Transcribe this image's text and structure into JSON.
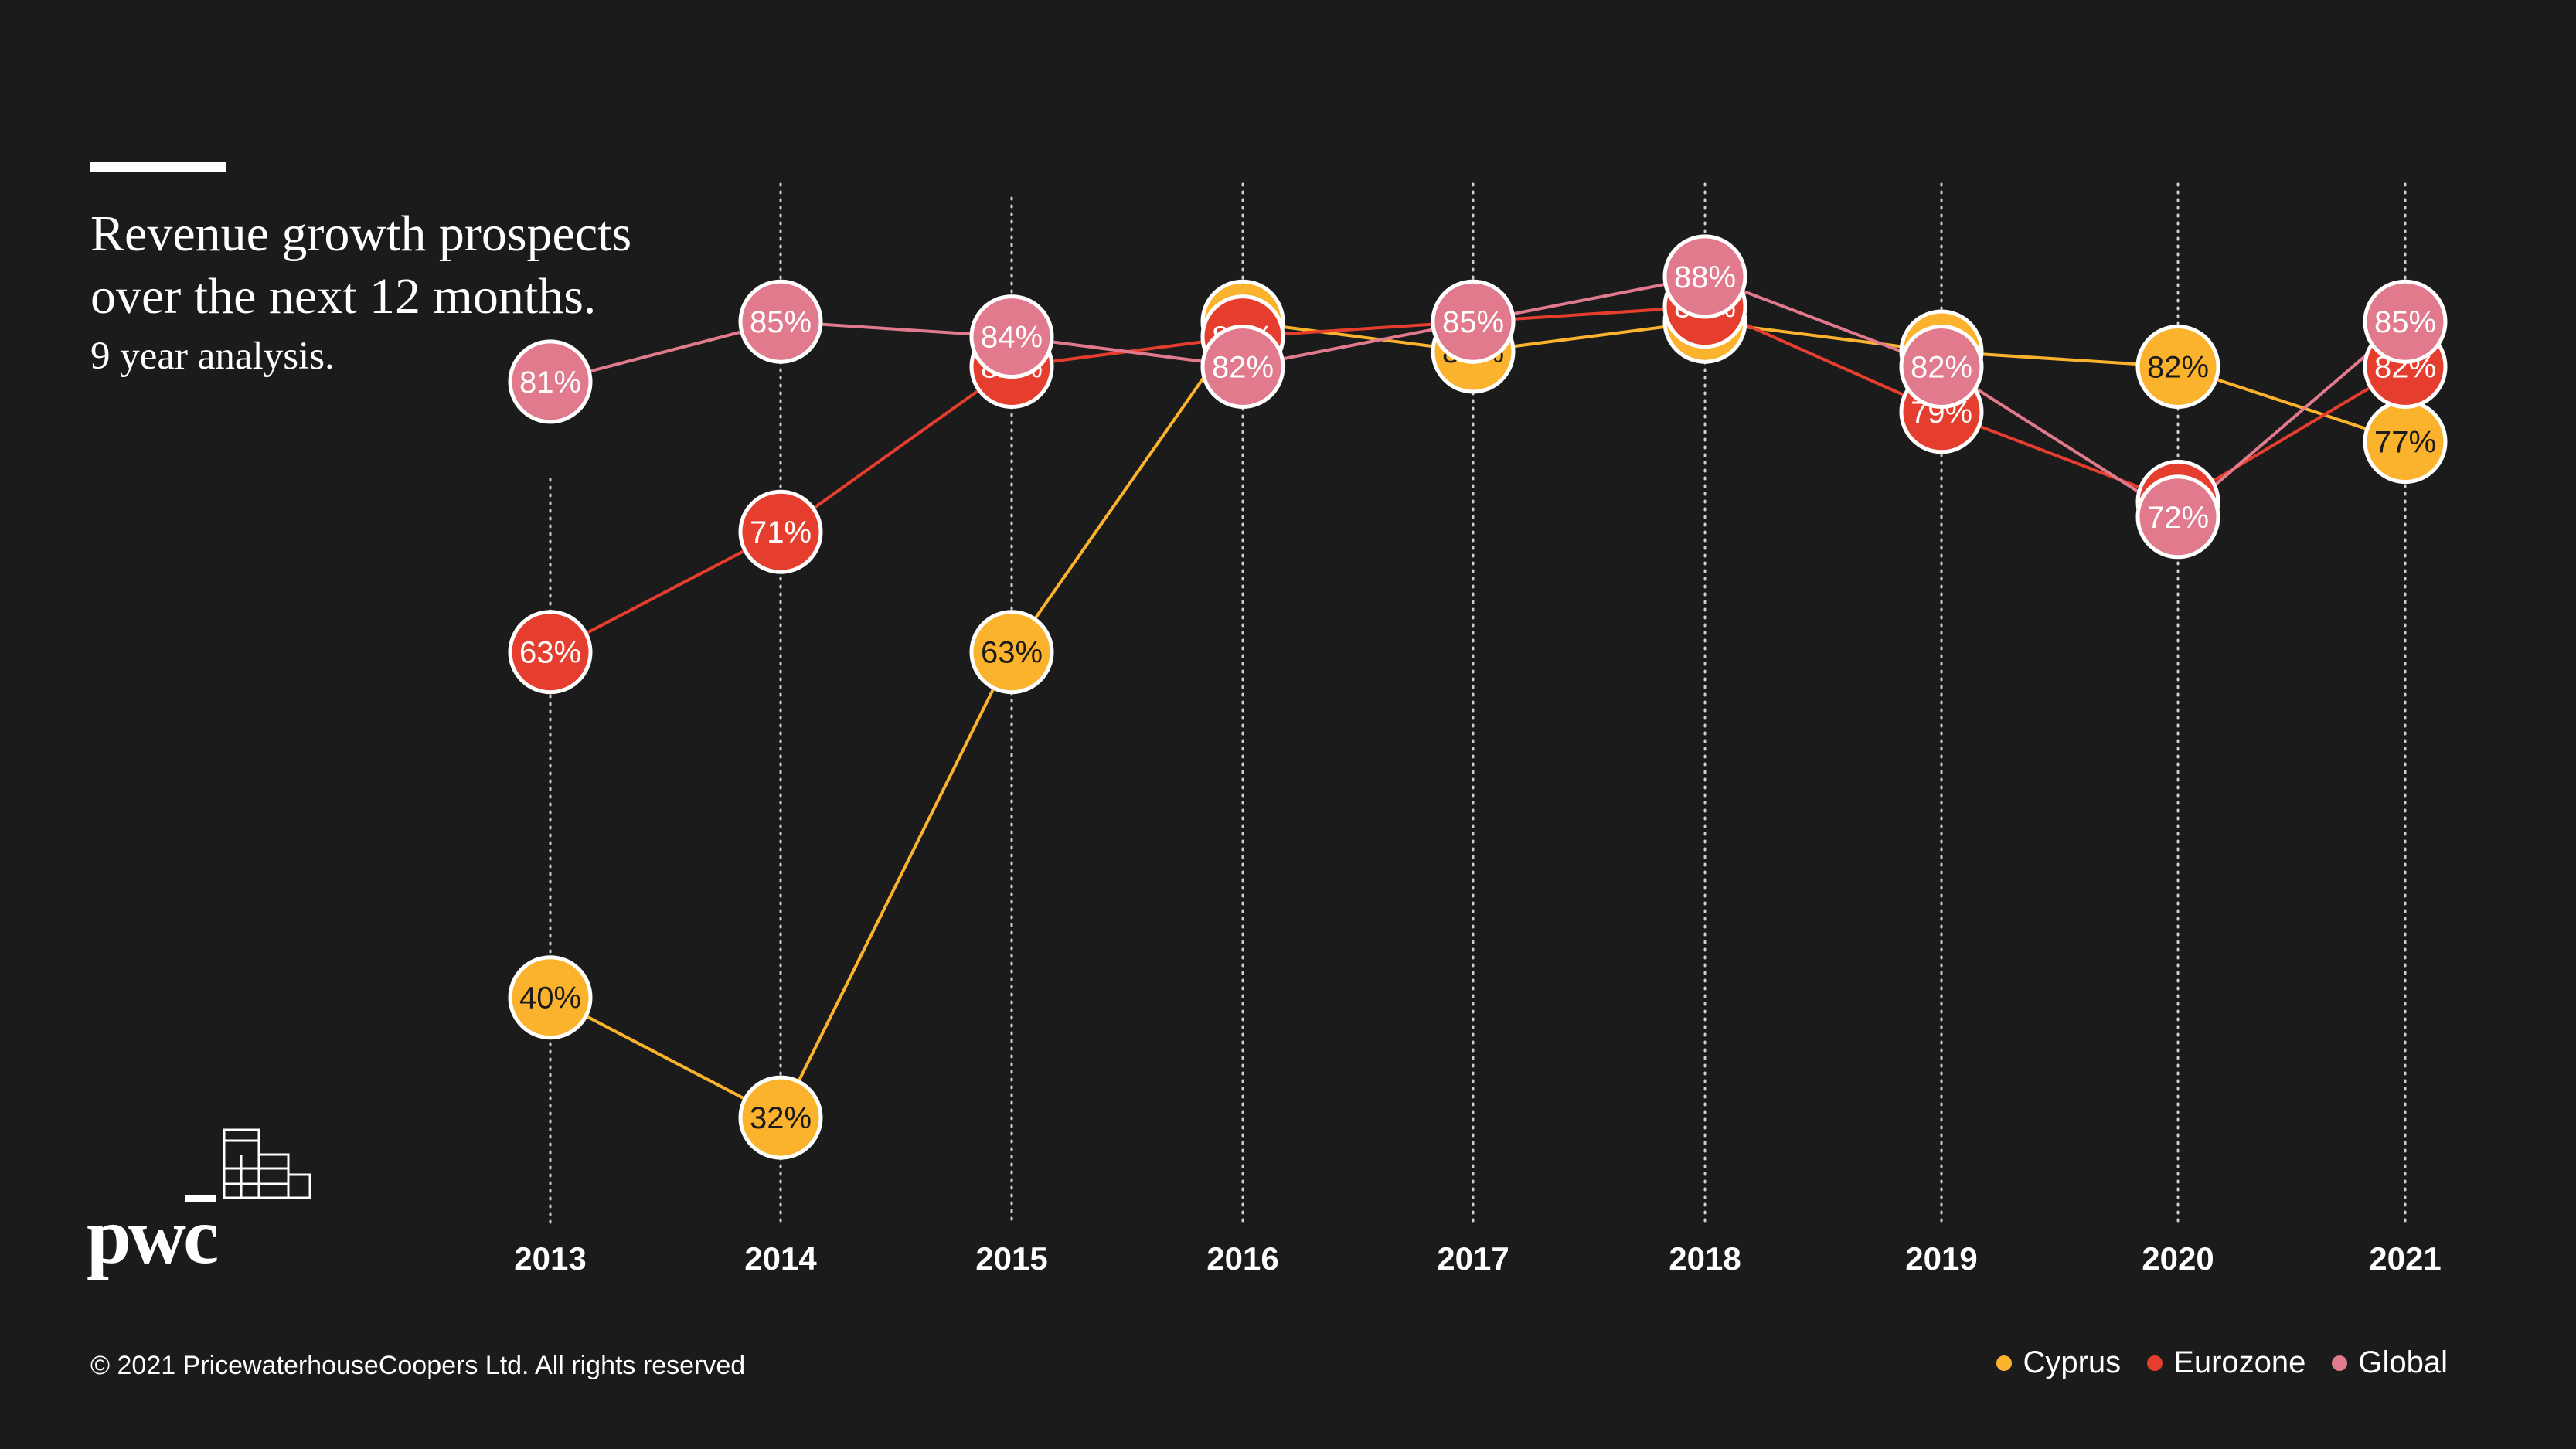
{
  "header": {
    "title_line1": "Revenue growth prospects",
    "title_line2": "over the next 12 months.",
    "subtitle": "9 year analysis."
  },
  "footer": {
    "copyright": "© 2021 PricewaterhouseCoopers Ltd. All rights reserved"
  },
  "brand": {
    "logo_text": "pwc"
  },
  "colors": {
    "background": "#1c1b1b",
    "Cyprus": "#fbb32e",
    "Eurozone": "#e63e2e",
    "Global": "#e07a8c"
  },
  "chart_data": {
    "type": "line",
    "title": "Revenue growth prospects over the next 12 months.",
    "subtitle": "9 year analysis.",
    "xlabel": "",
    "ylabel": "",
    "x": [
      "2013",
      "2014",
      "2015",
      "2016",
      "2017",
      "2018",
      "2019",
      "2020",
      "2021"
    ],
    "ylim": [
      30,
      90
    ],
    "grid": "vertical-dotted",
    "legend_position": "bottom-right",
    "series": [
      {
        "name": "Cyprus",
        "values": [
          40,
          32,
          63,
          85,
          83,
          85,
          83,
          82,
          77
        ],
        "labels": [
          "40%",
          "32%",
          "63%",
          "85%",
          "83%",
          "85%",
          "83%",
          "82%",
          "77%"
        ]
      },
      {
        "name": "Eurozone",
        "values": [
          63,
          71,
          82,
          84,
          85,
          86,
          79,
          73,
          82
        ],
        "labels": [
          "63%",
          "71%",
          "82%",
          "84%",
          "85%",
          "86%",
          "79%",
          "73%",
          "82%"
        ]
      },
      {
        "name": "Global",
        "values": [
          81,
          85,
          84,
          82,
          85,
          88,
          82,
          72,
          85
        ],
        "labels": [
          "81%",
          "85%",
          "84%",
          "82%",
          "85%",
          "88%",
          "82%",
          "72%",
          "85%"
        ]
      }
    ]
  }
}
